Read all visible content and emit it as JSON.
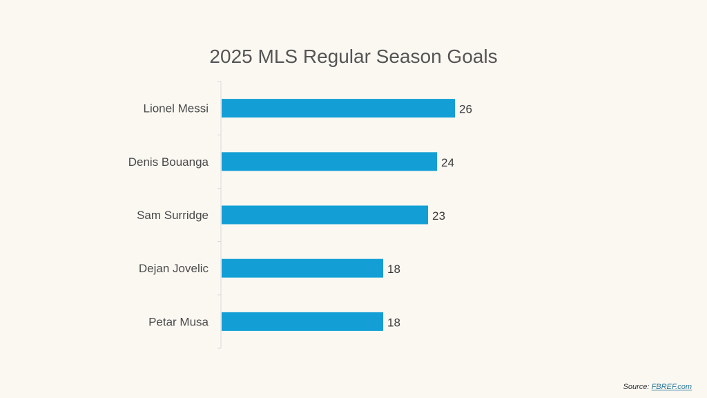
{
  "chart_data": {
    "type": "bar",
    "orientation": "horizontal",
    "title": "2025 MLS Regular Season Goals",
    "categories": [
      "Lionel Messi",
      "Denis Bouanga",
      "Sam Surridge",
      "Dejan Jovelic",
      "Petar Musa"
    ],
    "values": [
      26,
      24,
      23,
      18,
      18
    ],
    "xlim": [
      0,
      40
    ],
    "xlabel": "",
    "ylabel": "",
    "grid": false,
    "data_labels": true,
    "bar_color": "#139fd6"
  },
  "source": {
    "prefix": "Source: ",
    "link_text": "FBREF.com"
  },
  "colors": {
    "background": "#fbf8f2",
    "bar": "#139fd6",
    "axis": "#d9d9d9",
    "text": "#4a4a4a"
  }
}
